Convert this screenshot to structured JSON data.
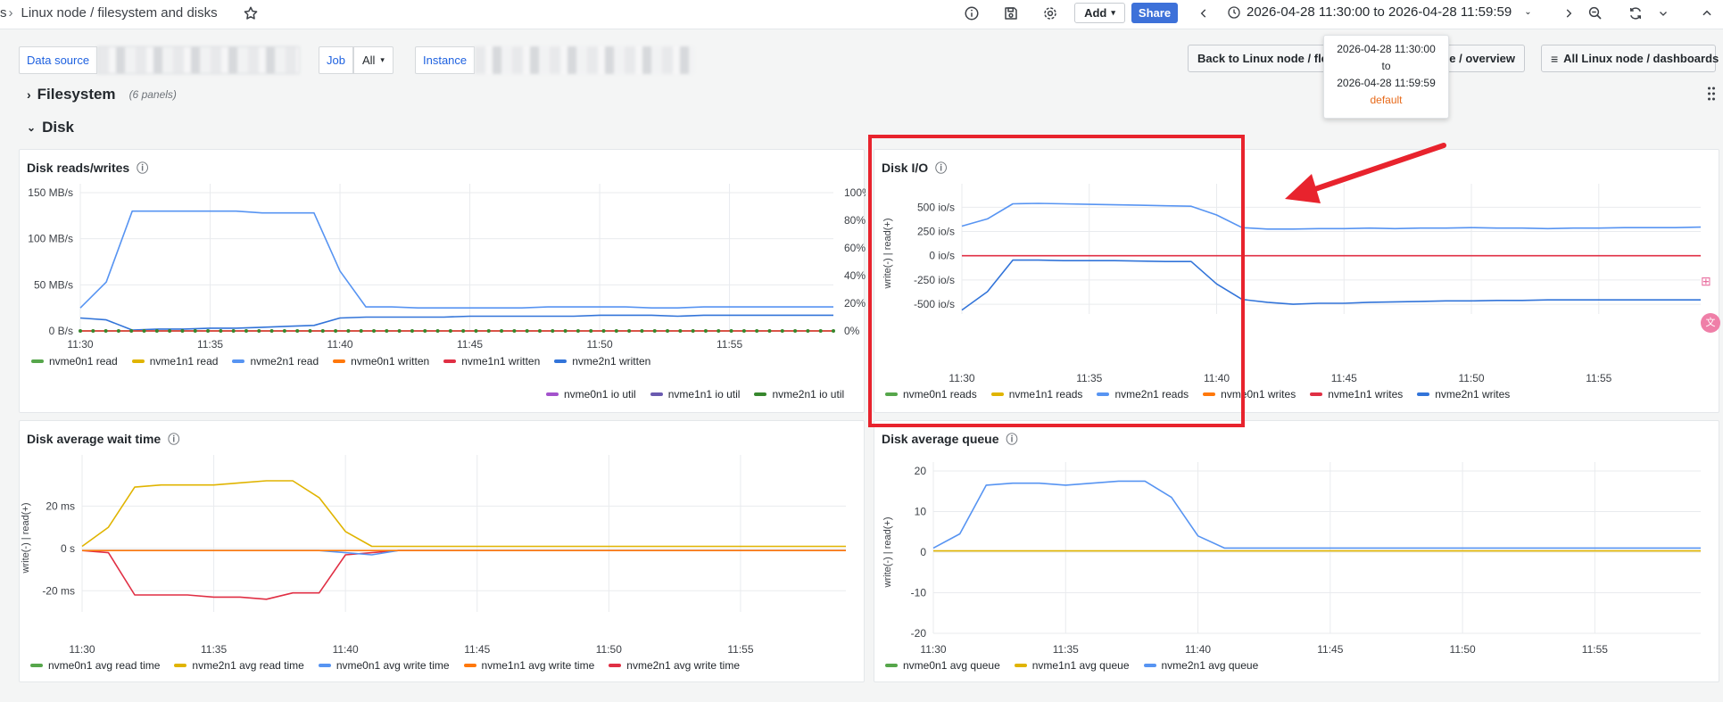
{
  "header": {
    "breadcrumb_prefix": "s",
    "title": "Linux node / filesystem and disks",
    "add_label": "Add",
    "share_label": "Share",
    "time_range": "2026-04-28 11:30:00 to 2026-04-28 11:59:59"
  },
  "variables": {
    "datasource_label": "Data source",
    "job_label": "Job",
    "job_value": "All",
    "instance_label": "Instance"
  },
  "links": {
    "back_label": "Back to Linux node / flee",
    "overview_label": "de / overview",
    "all_dashboards_label": "All Linux node / dashboards"
  },
  "tooltip": {
    "from": "2026-04-28 11:30:00",
    "to_word": "to",
    "to": "2026-04-28 11:59:59",
    "timezone": "default"
  },
  "rows": {
    "filesystem": {
      "title": "Filesystem",
      "count": "(6 panels)"
    },
    "disk": {
      "title": "Disk"
    }
  },
  "colors": {
    "green": "#56a64b",
    "yellow": "#e0b400",
    "blue": "#5794f2",
    "orange": "#ff780a",
    "red": "#e02f44",
    "darkblue": "#3274d9",
    "purple": "#a352cc",
    "violet": "#8f3bb8",
    "darkgreen": "#37872d"
  },
  "panels": {
    "reads_writes": {
      "title": "Disk reads/writes",
      "legend": [
        "nvme0n1 read",
        "nvme1n1 read",
        "nvme2n1 read",
        "nvme0n1 written",
        "nvme1n1 written",
        "nvme2n1 written"
      ],
      "legend2": [
        "nvme0n1 io util",
        "nvme1n1 io util",
        "nvme2n1 io util"
      ]
    },
    "disk_io": {
      "title": "Disk I/O",
      "legend": [
        "nvme0n1 reads",
        "nvme1n1 reads",
        "nvme2n1 reads",
        "nvme0n1 writes",
        "nvme1n1 writes",
        "nvme2n1 writes"
      ]
    },
    "wait_time": {
      "title": "Disk average wait time",
      "legend": [
        "nvme0n1 avg read time",
        "nvme2n1 avg read time",
        "nvme0n1 avg write time",
        "nvme1n1 avg write time",
        "nvme2n1 avg write time"
      ]
    },
    "queue": {
      "title": "Disk average queue",
      "legend": [
        "nvme0n1 avg queue",
        "nvme1n1 avg queue",
        "nvme2n1 avg queue"
      ]
    }
  },
  "chart_data": [
    {
      "type": "line",
      "title": "Disk reads/writes",
      "x": [
        "11:30",
        "11:31",
        "11:32",
        "11:33",
        "11:34",
        "11:35",
        "11:36",
        "11:37",
        "11:38",
        "11:39",
        "11:40",
        "11:41",
        "11:42",
        "11:43",
        "11:44",
        "11:45",
        "11:46",
        "11:47",
        "11:48",
        "11:49",
        "11:50",
        "11:51",
        "11:52",
        "11:53",
        "11:54",
        "11:55",
        "11:56",
        "11:57",
        "11:58",
        "11:59"
      ],
      "x_ticks": [
        "11:30",
        "11:35",
        "11:40",
        "11:45",
        "11:50",
        "11:55"
      ],
      "y_ticks": [
        "0 B/s",
        "50 MB/s",
        "100 MB/s",
        "150 MB/s"
      ],
      "y2_ticks": [
        "0%",
        "20%",
        "40%",
        "60%",
        "80%",
        "100%"
      ],
      "ylim": [
        0,
        150
      ],
      "y2lim": [
        0,
        100
      ],
      "series": [
        {
          "name": "nvme2n1 read",
          "color": "#5794f2",
          "values": [
            25,
            53,
            130,
            130,
            130,
            130,
            130,
            128,
            128,
            128,
            65,
            26,
            26,
            25,
            25,
            25,
            25,
            25,
            26,
            26,
            26,
            26,
            25,
            25,
            26,
            26,
            26,
            26,
            26,
            26
          ]
        },
        {
          "name": "nvme2n1 written",
          "color": "#3274d9",
          "values": [
            14,
            12,
            1,
            2,
            2,
            3,
            3,
            4,
            5,
            6,
            14,
            15,
            15,
            15,
            15,
            16,
            16,
            16,
            16,
            16,
            17,
            17,
            17,
            16,
            17,
            17,
            17,
            17,
            17,
            17
          ]
        },
        {
          "name": "nvme0n1 read",
          "color": "#56a64b",
          "values": [
            0,
            0,
            0,
            0,
            0,
            0,
            0,
            0,
            0,
            0,
            0,
            0,
            0,
            0,
            0,
            0,
            0,
            0,
            0,
            0,
            0,
            0,
            0,
            0,
            0,
            0,
            0,
            0,
            0,
            0
          ]
        },
        {
          "name": "nvme1n1 read",
          "color": "#e0b400",
          "values": [
            0,
            0,
            0,
            0,
            0,
            0,
            0,
            0,
            0,
            0,
            0,
            0,
            0,
            0,
            0,
            0,
            0,
            0,
            0,
            0,
            0,
            0,
            0,
            0,
            0,
            0,
            0,
            0,
            0,
            0
          ]
        },
        {
          "name": "nvme1n1 written",
          "color": "#e02f44",
          "values": [
            0,
            0,
            0,
            0,
            0,
            0,
            0,
            0,
            0,
            0,
            0,
            0,
            0,
            0,
            0,
            0,
            0,
            0,
            0,
            0,
            0,
            0,
            0,
            0,
            0,
            0,
            0,
            0,
            0,
            0
          ]
        }
      ]
    },
    {
      "type": "line",
      "title": "Disk I/O",
      "ylabel": "write(-) | read(+)",
      "x": [
        "11:30",
        "11:31",
        "11:32",
        "11:33",
        "11:34",
        "11:35",
        "11:36",
        "11:37",
        "11:38",
        "11:39",
        "11:40",
        "11:41",
        "11:42",
        "11:43",
        "11:44",
        "11:45",
        "11:46",
        "11:47",
        "11:48",
        "11:49",
        "11:50",
        "11:51",
        "11:52",
        "11:53",
        "11:54",
        "11:55",
        "11:56",
        "11:57",
        "11:58",
        "11:59"
      ],
      "x_ticks": [
        "11:30",
        "11:35",
        "11:40",
        "11:45",
        "11:50",
        "11:55"
      ],
      "y_ticks": [
        "-500 io/s",
        "-250 io/s",
        "0 io/s",
        "250 io/s",
        "500 io/s"
      ],
      "ylim": [
        -600,
        650
      ],
      "series": [
        {
          "name": "nvme2n1 reads",
          "color": "#5794f2",
          "values": [
            305,
            380,
            535,
            540,
            535,
            530,
            525,
            520,
            515,
            510,
            420,
            290,
            275,
            275,
            280,
            280,
            285,
            280,
            285,
            285,
            290,
            285,
            285,
            280,
            285,
            285,
            290,
            290,
            290,
            295
          ]
        },
        {
          "name": "nvme2n1 writes",
          "color": "#3274d9",
          "values": [
            -560,
            -370,
            -45,
            -45,
            -50,
            -50,
            -50,
            -55,
            -60,
            -60,
            -290,
            -450,
            -480,
            -500,
            -490,
            -490,
            -480,
            -475,
            -470,
            -465,
            -465,
            -460,
            -460,
            -455,
            -455,
            -455,
            -455,
            -455,
            -455,
            -455
          ]
        },
        {
          "name": "nvme1n1 writes",
          "color": "#e02f44",
          "values": [
            0,
            0,
            0,
            0,
            0,
            0,
            0,
            0,
            0,
            0,
            0,
            0,
            0,
            0,
            0,
            0,
            0,
            0,
            0,
            0,
            0,
            0,
            0,
            0,
            0,
            0,
            0,
            0,
            0,
            0
          ]
        }
      ]
    },
    {
      "type": "line",
      "title": "Disk average wait time",
      "ylabel": "write(-) | read(+)",
      "x": [
        "11:30",
        "11:31",
        "11:32",
        "11:33",
        "11:34",
        "11:35",
        "11:36",
        "11:37",
        "11:38",
        "11:39",
        "11:40",
        "11:41",
        "11:42",
        "11:43",
        "11:44",
        "11:45",
        "11:46",
        "11:47",
        "11:48",
        "11:49",
        "11:50",
        "11:51",
        "11:52",
        "11:53",
        "11:54",
        "11:55",
        "11:56",
        "11:57",
        "11:58",
        "11:59"
      ],
      "x_ticks": [
        "11:30",
        "11:35",
        "11:40",
        "11:45",
        "11:50",
        "11:55"
      ],
      "y_ticks": [
        "-20 ms",
        "0 s",
        "20 ms"
      ],
      "ylim": [
        -30,
        40
      ],
      "series": [
        {
          "name": "nvme2n1 avg read time",
          "color": "#e0b400",
          "values": [
            1,
            10,
            29,
            30,
            30,
            30,
            31,
            32,
            32,
            24,
            8,
            1,
            1,
            1,
            1,
            1,
            1,
            1,
            1,
            1,
            1,
            1,
            1,
            1,
            1,
            1,
            1,
            1,
            1,
            1
          ]
        },
        {
          "name": "nvme2n1 avg write time",
          "color": "#e02f44",
          "values": [
            -1,
            -2,
            -22,
            -22,
            -22,
            -23,
            -23,
            -24,
            -21,
            -21,
            -3,
            -2,
            -1,
            -1,
            -1,
            -1,
            -1,
            -1,
            -1,
            -1,
            -1,
            -1,
            -1,
            -1,
            -1,
            -1,
            -1,
            -1,
            -1,
            -1
          ]
        },
        {
          "name": "nvme0n1 avg write time",
          "color": "#5794f2",
          "values": [
            -1,
            -1,
            -1,
            -1,
            -1,
            -1,
            -1,
            -1,
            -1,
            -1,
            -2,
            -3,
            -1,
            -1,
            -1,
            -1,
            -1,
            -1,
            -1,
            -1,
            -1,
            -1,
            -1,
            -1,
            -1,
            -1,
            -1,
            -1,
            -1,
            -1
          ]
        },
        {
          "name": "nvme1n1 avg write time",
          "color": "#ff780a",
          "values": [
            -1,
            -1,
            -1,
            -1,
            -1,
            -1,
            -1,
            -1,
            -1,
            -1,
            -1,
            -1,
            -1,
            -1,
            -1,
            -1,
            -1,
            -1,
            -1,
            -1,
            -1,
            -1,
            -1,
            -1,
            -1,
            -1,
            -1,
            -1,
            -1,
            -1
          ]
        }
      ]
    },
    {
      "type": "line",
      "title": "Disk average queue",
      "ylabel": "write(-) | read(+)",
      "x": [
        "11:30",
        "11:31",
        "11:32",
        "11:33",
        "11:34",
        "11:35",
        "11:36",
        "11:37",
        "11:38",
        "11:39",
        "11:40",
        "11:41",
        "11:42",
        "11:43",
        "11:44",
        "11:45",
        "11:46",
        "11:47",
        "11:48",
        "11:49",
        "11:50",
        "11:51",
        "11:52",
        "11:53",
        "11:54",
        "11:55",
        "11:56",
        "11:57",
        "11:58",
        "11:59"
      ],
      "x_ticks": [
        "11:30",
        "11:35",
        "11:40",
        "11:45",
        "11:50",
        "11:55"
      ],
      "y_ticks": [
        "-20",
        "-10",
        "0",
        "10",
        "20"
      ],
      "ylim": [
        -20,
        20
      ],
      "series": [
        {
          "name": "nvme2n1 avg queue",
          "color": "#5794f2",
          "values": [
            1,
            4.5,
            16.5,
            17,
            17,
            16.5,
            17,
            17.5,
            17.5,
            13.5,
            4,
            1,
            1,
            1,
            1,
            1,
            1,
            1,
            1,
            1,
            1,
            1,
            1,
            1,
            1,
            1,
            1,
            1,
            1,
            1
          ]
        },
        {
          "name": "nvme1n1 avg queue",
          "color": "#e0b400",
          "values": [
            0.3,
            0.3,
            0.3,
            0.3,
            0.3,
            0.3,
            0.3,
            0.3,
            0.3,
            0.3,
            0.3,
            0.3,
            0.3,
            0.3,
            0.3,
            0.3,
            0.3,
            0.3,
            0.3,
            0.3,
            0.3,
            0.3,
            0.3,
            0.3,
            0.3,
            0.3,
            0.3,
            0.3,
            0.3,
            0.3
          ]
        }
      ]
    }
  ]
}
